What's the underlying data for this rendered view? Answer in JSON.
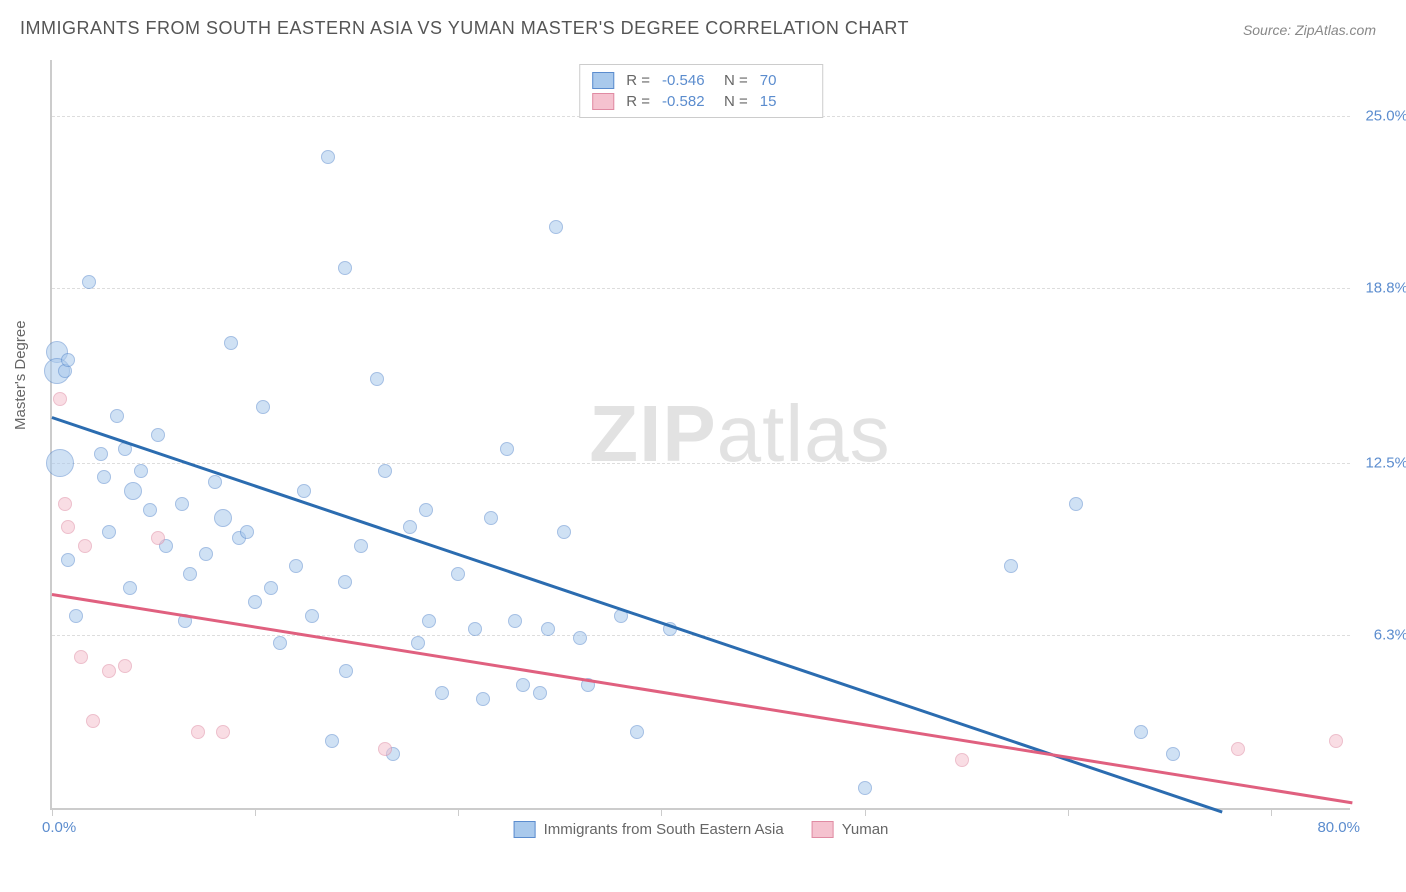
{
  "title": "IMMIGRANTS FROM SOUTH EASTERN ASIA VS YUMAN MASTER'S DEGREE CORRELATION CHART",
  "source": "Source: ZipAtlas.com",
  "watermark": {
    "bold": "ZIP",
    "rest": "atlas"
  },
  "chart": {
    "type": "scatter",
    "y_label": "Master's Degree",
    "x_min_label": "0.0%",
    "x_max_label": "80.0%",
    "xlim": [
      0,
      80
    ],
    "ylim": [
      0,
      27
    ],
    "background_color": "#ffffff",
    "grid_color": "#dddddd",
    "axis_color": "#cccccc",
    "y_ticks": [
      {
        "value": 6.3,
        "label": "6.3%"
      },
      {
        "value": 12.5,
        "label": "12.5%"
      },
      {
        "value": 18.8,
        "label": "18.8%"
      },
      {
        "value": 25.0,
        "label": "25.0%"
      }
    ],
    "x_tick_positions": [
      0,
      12.5,
      25,
      37.5,
      50,
      62.5,
      75
    ],
    "series": [
      {
        "name": "Immigrants from South Eastern Asia",
        "fill_color": "#a9c9ec",
        "stroke_color": "#5b8cce",
        "fill_opacity": 0.55,
        "trend_line_color": "#2b6cb0",
        "trend_start": {
          "x": 0,
          "y": 14.2
        },
        "trend_end": {
          "x": 72,
          "y": 0
        },
        "r": "-0.546",
        "n": "70",
        "points": [
          {
            "x": 0.3,
            "y": 16.5,
            "r": 11
          },
          {
            "x": 0.3,
            "y": 15.8,
            "r": 13
          },
          {
            "x": 0.5,
            "y": 12.5,
            "r": 14
          },
          {
            "x": 0.8,
            "y": 15.8,
            "r": 7
          },
          {
            "x": 1.0,
            "y": 16.2,
            "r": 7
          },
          {
            "x": 2.3,
            "y": 19.0,
            "r": 7
          },
          {
            "x": 1.0,
            "y": 9.0,
            "r": 7
          },
          {
            "x": 3.0,
            "y": 12.8,
            "r": 7
          },
          {
            "x": 3.2,
            "y": 12.0,
            "r": 7
          },
          {
            "x": 3.5,
            "y": 10.0,
            "r": 7
          },
          {
            "x": 4.0,
            "y": 14.2,
            "r": 7
          },
          {
            "x": 4.5,
            "y": 13.0,
            "r": 7
          },
          {
            "x": 5.0,
            "y": 11.5,
            "r": 9
          },
          {
            "x": 5.5,
            "y": 12.2,
            "r": 7
          },
          {
            "x": 6.0,
            "y": 10.8,
            "r": 7
          },
          {
            "x": 6.5,
            "y": 13.5,
            "r": 7
          },
          {
            "x": 7.0,
            "y": 9.5,
            "r": 7
          },
          {
            "x": 8.0,
            "y": 11.0,
            "r": 7
          },
          {
            "x": 8.2,
            "y": 6.8,
            "r": 7
          },
          {
            "x": 8.5,
            "y": 8.5,
            "r": 7
          },
          {
            "x": 9.5,
            "y": 9.2,
            "r": 7
          },
          {
            "x": 10.0,
            "y": 11.8,
            "r": 7
          },
          {
            "x": 10.5,
            "y": 10.5,
            "r": 9
          },
          {
            "x": 11.0,
            "y": 16.8,
            "r": 7
          },
          {
            "x": 11.5,
            "y": 9.8,
            "r": 7
          },
          {
            "x": 12.0,
            "y": 10.0,
            "r": 7
          },
          {
            "x": 12.5,
            "y": 7.5,
            "r": 7
          },
          {
            "x": 13.0,
            "y": 14.5,
            "r": 7
          },
          {
            "x": 13.5,
            "y": 8.0,
            "r": 7
          },
          {
            "x": 14.0,
            "y": 6.0,
            "r": 7
          },
          {
            "x": 15.0,
            "y": 8.8,
            "r": 7
          },
          {
            "x": 15.5,
            "y": 11.5,
            "r": 7
          },
          {
            "x": 16.0,
            "y": 7.0,
            "r": 7
          },
          {
            "x": 17.0,
            "y": 23.5,
            "r": 7
          },
          {
            "x": 17.2,
            "y": 2.5,
            "r": 7
          },
          {
            "x": 18.0,
            "y": 19.5,
            "r": 7
          },
          {
            "x": 18.0,
            "y": 8.2,
            "r": 7
          },
          {
            "x": 18.1,
            "y": 5.0,
            "r": 7
          },
          {
            "x": 19.0,
            "y": 9.5,
            "r": 7
          },
          {
            "x": 20.0,
            "y": 15.5,
            "r": 7
          },
          {
            "x": 20.5,
            "y": 12.2,
            "r": 7
          },
          {
            "x": 21.0,
            "y": 2.0,
            "r": 7
          },
          {
            "x": 22.0,
            "y": 10.2,
            "r": 7
          },
          {
            "x": 22.5,
            "y": 6.0,
            "r": 7
          },
          {
            "x": 23.0,
            "y": 10.8,
            "r": 7
          },
          {
            "x": 23.2,
            "y": 6.8,
            "r": 7
          },
          {
            "x": 24.0,
            "y": 4.2,
            "r": 7
          },
          {
            "x": 25.0,
            "y": 8.5,
            "r": 7
          },
          {
            "x": 26.0,
            "y": 6.5,
            "r": 7
          },
          {
            "x": 26.5,
            "y": 4.0,
            "r": 7
          },
          {
            "x": 27.0,
            "y": 10.5,
            "r": 7
          },
          {
            "x": 28.0,
            "y": 13.0,
            "r": 7
          },
          {
            "x": 28.5,
            "y": 6.8,
            "r": 7
          },
          {
            "x": 29.0,
            "y": 4.5,
            "r": 7
          },
          {
            "x": 30.0,
            "y": 4.2,
            "r": 7
          },
          {
            "x": 30.5,
            "y": 6.5,
            "r": 7
          },
          {
            "x": 31.0,
            "y": 21.0,
            "r": 7
          },
          {
            "x": 31.5,
            "y": 10.0,
            "r": 7
          },
          {
            "x": 32.5,
            "y": 6.2,
            "r": 7
          },
          {
            "x": 33.0,
            "y": 4.5,
            "r": 7
          },
          {
            "x": 35.0,
            "y": 7.0,
            "r": 7
          },
          {
            "x": 36.0,
            "y": 2.8,
            "r": 7
          },
          {
            "x": 38.0,
            "y": 6.5,
            "r": 7
          },
          {
            "x": 50.0,
            "y": 0.8,
            "r": 7
          },
          {
            "x": 59.0,
            "y": 8.8,
            "r": 7
          },
          {
            "x": 63.0,
            "y": 11.0,
            "r": 7
          },
          {
            "x": 67.0,
            "y": 2.8,
            "r": 7
          },
          {
            "x": 69.0,
            "y": 2.0,
            "r": 7
          },
          {
            "x": 1.5,
            "y": 7.0,
            "r": 7
          },
          {
            "x": 4.8,
            "y": 8.0,
            "r": 7
          }
        ]
      },
      {
        "name": "Yuman",
        "fill_color": "#f5c2cf",
        "stroke_color": "#e08ba3",
        "fill_opacity": 0.55,
        "trend_line_color": "#e0607f",
        "trend_start": {
          "x": 0,
          "y": 7.8
        },
        "trend_end": {
          "x": 80,
          "y": 0.3
        },
        "r": "-0.582",
        "n": "15",
        "points": [
          {
            "x": 0.5,
            "y": 14.8,
            "r": 7
          },
          {
            "x": 0.8,
            "y": 11.0,
            "r": 7
          },
          {
            "x": 1.0,
            "y": 10.2,
            "r": 7
          },
          {
            "x": 1.8,
            "y": 5.5,
            "r": 7
          },
          {
            "x": 2.0,
            "y": 9.5,
            "r": 7
          },
          {
            "x": 2.5,
            "y": 3.2,
            "r": 7
          },
          {
            "x": 3.5,
            "y": 5.0,
            "r": 7
          },
          {
            "x": 6.5,
            "y": 9.8,
            "r": 7
          },
          {
            "x": 9.0,
            "y": 2.8,
            "r": 7
          },
          {
            "x": 10.5,
            "y": 2.8,
            "r": 7
          },
          {
            "x": 20.5,
            "y": 2.2,
            "r": 7
          },
          {
            "x": 56.0,
            "y": 1.8,
            "r": 7
          },
          {
            "x": 73.0,
            "y": 2.2,
            "r": 7
          },
          {
            "x": 79.0,
            "y": 2.5,
            "r": 7
          },
          {
            "x": 4.5,
            "y": 5.2,
            "r": 7
          }
        ]
      }
    ]
  }
}
